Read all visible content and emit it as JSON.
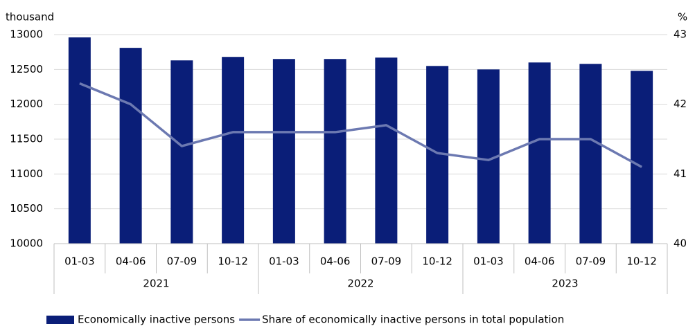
{
  "chart_data": {
    "type": "bar-line",
    "y_label": "thousand",
    "y2_label": "%",
    "categories": [
      "01-03",
      "04-06",
      "07-09",
      "10-12",
      "01-03",
      "04-06",
      "07-09",
      "10-12",
      "01-03",
      "04-06",
      "07-09",
      "10-12"
    ],
    "groups": [
      "2021",
      "2022",
      "2023"
    ],
    "series": [
      {
        "name": "Economically inactive persons",
        "type": "bar",
        "color": "#0a1e78",
        "values": [
          12960,
          12810,
          12630,
          12680,
          12650,
          12650,
          12670,
          12550,
          12500,
          12600,
          12580,
          12480
        ]
      },
      {
        "name": "Share of economically inactive persons in total population",
        "type": "line",
        "axis": "y2",
        "color": "#6c79b1",
        "values": [
          42.3,
          42.0,
          41.4,
          41.6,
          41.6,
          41.6,
          41.7,
          41.3,
          41.2,
          41.5,
          41.5,
          41.1
        ]
      }
    ],
    "ylim": [
      10000,
      13000
    ],
    "yticks": [
      10000,
      10500,
      11000,
      11500,
      12000,
      12500,
      13000
    ],
    "y2lim": [
      40,
      43
    ],
    "y2ticks": [
      40,
      41,
      42,
      43
    ],
    "grid": true
  }
}
